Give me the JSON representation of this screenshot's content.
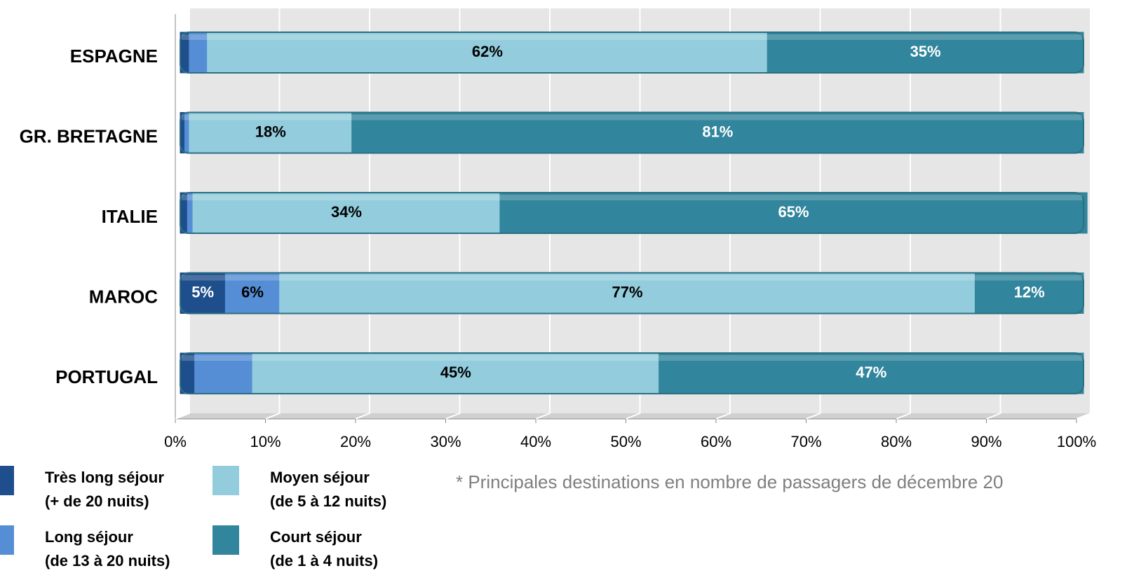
{
  "chart_data": {
    "type": "stacked_barh",
    "categories": [
      "ESPAGNE",
      "GR. BRETAGNE",
      "ITALIE",
      "MAROC",
      "PORTUGAL"
    ],
    "series": [
      {
        "name": "Très long séjour (+ de 20 nuits)",
        "color": "#1f4e8c",
        "values": [
          1,
          0.5,
          0.8,
          5,
          1.6
        ],
        "value_labels": [
          null,
          null,
          null,
          "5%",
          null
        ]
      },
      {
        "name": "Long séjour (de 13 à 20 nuits)",
        "color": "#558ed5",
        "values": [
          2,
          0.5,
          0.6,
          6,
          6.4
        ],
        "value_labels": [
          null,
          null,
          null,
          "6%",
          null
        ]
      },
      {
        "name": "Moyen séjour (de 5 à 12 nuits)",
        "color": "#93cddd",
        "values": [
          62,
          18,
          34,
          77,
          45
        ],
        "value_labels": [
          "62%",
          "18%",
          "34%",
          "77%",
          "45%"
        ]
      },
      {
        "name": "Court séjour (de 1 à 4 nuits)",
        "color": "#31859c",
        "values": [
          35,
          81,
          65,
          12,
          47
        ],
        "value_labels": [
          "35%",
          "81%",
          "65%",
          "12%",
          "47%"
        ]
      }
    ],
    "xlim": [
      0,
      100
    ],
    "xticks": [
      {
        "value": 0,
        "label": "0%"
      },
      {
        "value": 10,
        "label": "10%"
      },
      {
        "value": 20,
        "label": "20%"
      },
      {
        "value": 30,
        "label": "30%"
      },
      {
        "value": 40,
        "label": "40%"
      },
      {
        "value": 50,
        "label": "50%"
      },
      {
        "value": 60,
        "label": "60%"
      },
      {
        "value": 70,
        "label": "70%"
      },
      {
        "value": 80,
        "label": "80%"
      },
      {
        "value": 90,
        "label": "90%"
      },
      {
        "value": 100,
        "label": "100%"
      }
    ],
    "grid": true,
    "annotation": "* Principales destinations en nombre de passagers de décembre 20"
  }
}
